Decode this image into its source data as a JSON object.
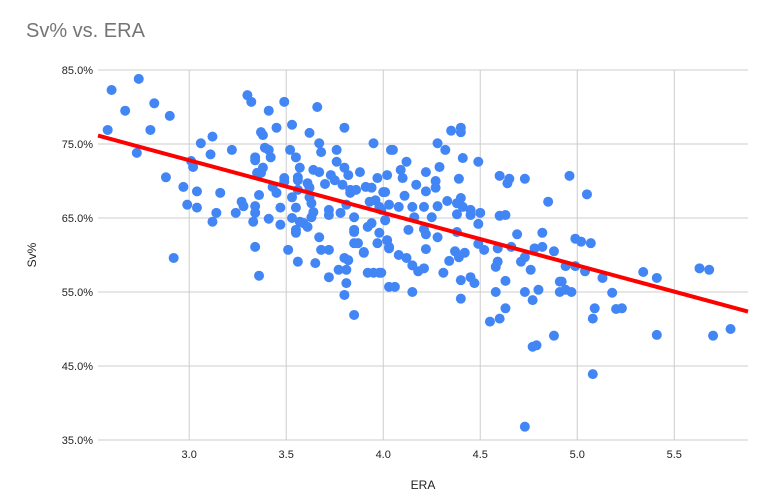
{
  "chart_data": {
    "type": "scatter",
    "title": "Sv% vs. ERA",
    "xlabel": "ERA",
    "ylabel": "Sv%",
    "xlim": [
      2.53,
      5.88
    ],
    "ylim": [
      35,
      85
    ],
    "xticks": [
      3.0,
      3.5,
      4.0,
      4.5,
      5.0,
      5.5
    ],
    "xtick_labels": [
      "3.0",
      "3.5",
      "4.0",
      "4.5",
      "5.0",
      "5.5"
    ],
    "yticks": [
      35,
      45,
      55,
      65,
      75,
      85
    ],
    "ytick_labels": [
      "35.0%",
      "45.0%",
      "55.0%",
      "65.0%",
      "75.0%",
      "85.0%"
    ],
    "grid": true,
    "legend": "none",
    "point_color": "#4285f4",
    "trendline": {
      "type": "linear",
      "color": "#ff0000",
      "slope": -7.1,
      "intercept": 94.1
    },
    "points": [
      [
        2.58,
        76.9
      ],
      [
        2.6,
        82.3
      ],
      [
        2.67,
        79.5
      ],
      [
        2.74,
        83.8
      ],
      [
        2.73,
        73.8
      ],
      [
        2.8,
        76.9
      ],
      [
        2.82,
        80.5
      ],
      [
        2.9,
        78.8
      ],
      [
        2.88,
        70.5
      ],
      [
        2.92,
        59.6
      ],
      [
        2.97,
        69.2
      ],
      [
        3.01,
        72.7
      ],
      [
        3.02,
        71.9
      ],
      [
        3.04,
        68.6
      ],
      [
        2.99,
        66.8
      ],
      [
        3.04,
        66.4
      ],
      [
        3.06,
        75.1
      ],
      [
        3.11,
        73.6
      ],
      [
        3.12,
        76.0
      ],
      [
        3.16,
        68.4
      ],
      [
        3.14,
        65.7
      ],
      [
        3.12,
        64.5
      ],
      [
        3.22,
        74.2
      ],
      [
        3.24,
        65.7
      ],
      [
        3.27,
        67.2
      ],
      [
        3.28,
        66.6
      ],
      [
        3.3,
        81.6
      ],
      [
        3.32,
        80.7
      ],
      [
        3.34,
        73.2
      ],
      [
        3.34,
        72.8
      ],
      [
        3.35,
        71.1
      ],
      [
        3.34,
        66.6
      ],
      [
        3.34,
        65.7
      ],
      [
        3.33,
        64.5
      ],
      [
        3.36,
        68.1
      ],
      [
        3.34,
        61.1
      ],
      [
        3.36,
        57.2
      ],
      [
        3.37,
        76.6
      ],
      [
        3.38,
        76.2
      ],
      [
        3.41,
        79.5
      ],
      [
        3.38,
        71.8
      ],
      [
        3.37,
        71.1
      ],
      [
        3.39,
        74.5
      ],
      [
        3.41,
        74.2
      ],
      [
        3.42,
        73.2
      ],
      [
        3.41,
        64.9
      ],
      [
        3.43,
        69.2
      ],
      [
        3.45,
        77.2
      ],
      [
        3.45,
        68.4
      ],
      [
        3.47,
        64.1
      ],
      [
        3.47,
        66.4
      ],
      [
        3.49,
        70.4
      ],
      [
        3.49,
        69.9
      ],
      [
        3.49,
        80.7
      ],
      [
        3.51,
        60.7
      ],
      [
        3.52,
        74.2
      ],
      [
        3.53,
        77.6
      ],
      [
        3.53,
        67.8
      ],
      [
        3.53,
        65.0
      ],
      [
        3.55,
        73.2
      ],
      [
        3.55,
        66.4
      ],
      [
        3.55,
        63.4
      ],
      [
        3.55,
        63.0
      ],
      [
        3.56,
        70.5
      ],
      [
        3.56,
        70.1
      ],
      [
        3.56,
        68.8
      ],
      [
        3.56,
        59.1
      ],
      [
        3.57,
        71.8
      ],
      [
        3.57,
        64.5
      ],
      [
        3.59,
        64.3
      ],
      [
        3.61,
        63.8
      ],
      [
        3.61,
        69.7
      ],
      [
        3.62,
        76.5
      ],
      [
        3.62,
        69.1
      ],
      [
        3.62,
        67.8
      ],
      [
        3.63,
        67.0
      ],
      [
        3.63,
        65.1
      ],
      [
        3.64,
        71.5
      ],
      [
        3.64,
        65.8
      ],
      [
        3.65,
        58.9
      ],
      [
        3.66,
        80.0
      ],
      [
        3.67,
        62.4
      ],
      [
        3.67,
        75.1
      ],
      [
        3.67,
        71.2
      ],
      [
        3.68,
        73.9
      ],
      [
        3.68,
        60.7
      ],
      [
        3.7,
        69.6
      ],
      [
        3.72,
        66.1
      ],
      [
        3.72,
        60.7
      ],
      [
        3.72,
        65.4
      ],
      [
        3.72,
        57.0
      ],
      [
        3.73,
        70.8
      ],
      [
        3.75,
        70.1
      ],
      [
        3.76,
        74.2
      ],
      [
        3.76,
        72.6
      ],
      [
        3.77,
        58.0
      ],
      [
        3.78,
        65.7
      ],
      [
        3.79,
        69.5
      ],
      [
        3.8,
        59.6
      ],
      [
        3.8,
        54.6
      ],
      [
        3.8,
        77.2
      ],
      [
        3.8,
        71.8
      ],
      [
        3.81,
        66.8
      ],
      [
        3.81,
        56.2
      ],
      [
        3.81,
        58.0
      ],
      [
        3.82,
        59.3
      ],
      [
        3.82,
        70.8
      ],
      [
        3.83,
        68.8
      ],
      [
        3.83,
        68.4
      ],
      [
        3.85,
        63.4
      ],
      [
        3.85,
        63.1
      ],
      [
        3.85,
        61.6
      ],
      [
        3.85,
        65.1
      ],
      [
        3.86,
        68.8
      ],
      [
        3.87,
        61.6
      ],
      [
        3.88,
        71.2
      ],
      [
        3.9,
        60.3
      ],
      [
        3.9,
        60.4
      ],
      [
        3.91,
        69.2
      ],
      [
        3.92,
        63.8
      ],
      [
        3.92,
        57.6
      ],
      [
        3.93,
        67.2
      ],
      [
        3.94,
        69.1
      ],
      [
        3.94,
        64.3
      ],
      [
        3.95,
        75.1
      ],
      [
        3.95,
        57.6
      ],
      [
        3.96,
        67.4
      ],
      [
        3.97,
        61.6
      ],
      [
        3.97,
        70.4
      ],
      [
        3.98,
        63.0
      ],
      [
        3.98,
        57.6
      ],
      [
        3.98,
        66.5
      ],
      [
        4.0,
        68.5
      ],
      [
        4.01,
        64.7
      ],
      [
        4.02,
        70.8
      ],
      [
        4.02,
        62.0
      ],
      [
        4.03,
        60.9
      ],
      [
        4.03,
        66.8
      ],
      [
        4.04,
        74.2
      ],
      [
        4.03,
        55.7
      ],
      [
        3.85,
        51.9
      ],
      [
        4.35,
        76.8
      ],
      [
        4.4,
        77.2
      ],
      [
        4.4,
        76.6
      ],
      [
        4.28,
        75.1
      ],
      [
        4.32,
        74.2
      ],
      [
        4.05,
        74.2
      ],
      [
        4.41,
        73.1
      ],
      [
        4.49,
        72.6
      ],
      [
        4.12,
        72.6
      ],
      [
        4.29,
        71.9
      ],
      [
        4.09,
        71.5
      ],
      [
        4.22,
        71.2
      ],
      [
        4.1,
        70.4
      ],
      [
        4.39,
        70.3
      ],
      [
        4.6,
        70.7
      ],
      [
        4.65,
        70.3
      ],
      [
        4.64,
        69.7
      ],
      [
        4.73,
        70.3
      ],
      [
        4.96,
        70.7
      ],
      [
        4.17,
        69.5
      ],
      [
        4.27,
        70.0
      ],
      [
        4.27,
        69.1
      ],
      [
        4.22,
        68.6
      ],
      [
        4.11,
        68.0
      ],
      [
        4.01,
        68.5
      ],
      [
        4.33,
        67.3
      ],
      [
        4.4,
        67.7
      ],
      [
        4.38,
        67.0
      ],
      [
        4.85,
        67.2
      ],
      [
        4.08,
        66.5
      ],
      [
        4.15,
        66.5
      ],
      [
        4.21,
        66.5
      ],
      [
        4.28,
        66.6
      ],
      [
        4.41,
        66.5
      ],
      [
        4.45,
        66.1
      ],
      [
        4.5,
        65.7
      ],
      [
        4.45,
        65.4
      ],
      [
        4.38,
        65.5
      ],
      [
        4.6,
        65.3
      ],
      [
        4.63,
        65.4
      ],
      [
        3.99,
        66.1
      ],
      [
        4.01,
        64.7
      ],
      [
        4.25,
        65.1
      ],
      [
        4.16,
        65.1
      ],
      [
        4.13,
        63.4
      ],
      [
        4.49,
        64.2
      ],
      [
        4.21,
        63.5
      ],
      [
        4.38,
        63.1
      ],
      [
        4.28,
        62.4
      ],
      [
        4.22,
        62.8
      ],
      [
        4.69,
        62.8
      ],
      [
        4.82,
        63.0
      ],
      [
        4.99,
        62.2
      ],
      [
        4.02,
        62.0
      ],
      [
        4.03,
        61.1
      ],
      [
        4.49,
        61.5
      ],
      [
        4.52,
        60.7
      ],
      [
        4.59,
        60.9
      ],
      [
        4.66,
        61.1
      ],
      [
        4.78,
        60.9
      ],
      [
        4.82,
        61.1
      ],
      [
        4.88,
        60.5
      ],
      [
        4.22,
        60.8
      ],
      [
        4.37,
        60.5
      ],
      [
        4.42,
        60.3
      ],
      [
        4.39,
        59.7
      ],
      [
        4.08,
        60.0
      ],
      [
        4.12,
        59.6
      ],
      [
        4.34,
        59.2
      ],
      [
        4.15,
        58.6
      ],
      [
        4.21,
        58.2
      ],
      [
        4.18,
        57.8
      ],
      [
        4.59,
        59.1
      ],
      [
        4.58,
        58.4
      ],
      [
        4.71,
        59.1
      ],
      [
        4.73,
        59.7
      ],
      [
        4.76,
        58.0
      ],
      [
        4.94,
        58.5
      ],
      [
        4.99,
        58.5
      ],
      [
        4.31,
        57.6
      ],
      [
        4.4,
        56.6
      ],
      [
        4.45,
        57.0
      ],
      [
        4.47,
        56.2
      ],
      [
        4.63,
        56.5
      ],
      [
        4.91,
        56.4
      ],
      [
        4.06,
        55.7
      ],
      [
        4.15,
        55.0
      ],
      [
        4.4,
        54.1
      ],
      [
        4.58,
        55.0
      ],
      [
        4.73,
        55.0
      ],
      [
        4.8,
        55.3
      ],
      [
        4.77,
        53.9
      ],
      [
        4.91,
        55.0
      ],
      [
        4.94,
        55.3
      ],
      [
        4.97,
        55.0
      ],
      [
        4.63,
        52.8
      ],
      [
        4.6,
        51.4
      ],
      [
        4.55,
        51.0
      ],
      [
        4.88,
        49.1
      ],
      [
        3.99,
        57.6
      ],
      [
        5.05,
        68.2
      ],
      [
        5.02,
        61.8
      ],
      [
        5.07,
        61.6
      ],
      [
        5.04,
        57.8
      ],
      [
        5.13,
        56.9
      ],
      [
        5.34,
        57.7
      ],
      [
        5.41,
        56.9
      ],
      [
        5.63,
        58.2
      ],
      [
        5.68,
        58.0
      ],
      [
        4.92,
        56.4
      ],
      [
        5.18,
        54.9
      ],
      [
        5.09,
        52.8
      ],
      [
        5.2,
        52.7
      ],
      [
        5.23,
        52.8
      ],
      [
        5.08,
        51.4
      ],
      [
        5.41,
        49.2
      ],
      [
        5.7,
        49.1
      ],
      [
        5.79,
        50.0
      ],
      [
        5.08,
        43.9
      ],
      [
        4.73,
        36.8
      ],
      [
        4.77,
        47.6
      ],
      [
        4.79,
        47.8
      ]
    ]
  }
}
